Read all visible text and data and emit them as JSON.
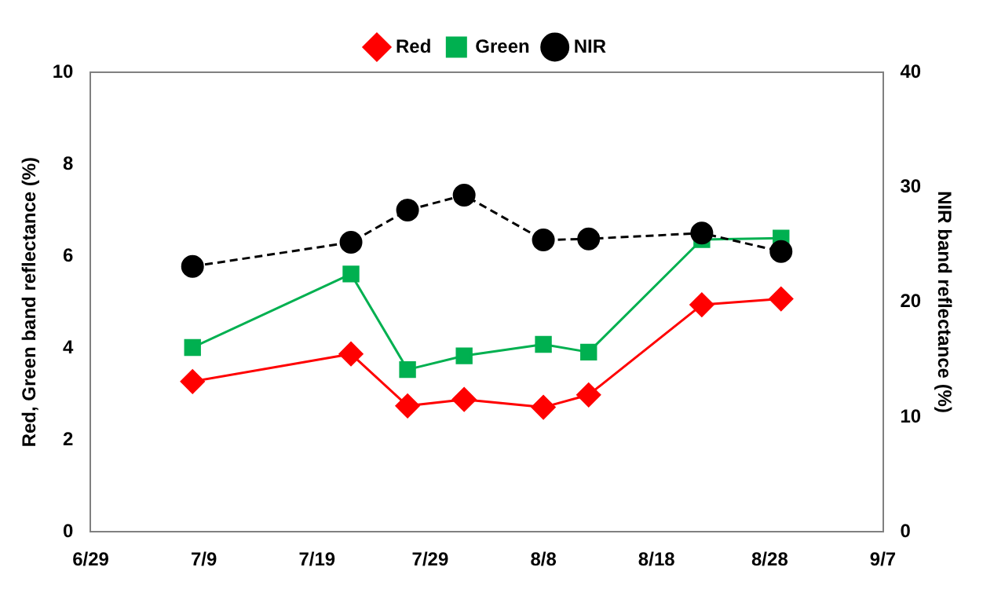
{
  "chart_data": {
    "type": "line",
    "ylabel": "Red, Green band reflectance (%)",
    "y2label": "NIR band reflectance (%)",
    "x": [
      "--07-08",
      "--07-22",
      "--07-27",
      "--08-01",
      "--08-08",
      "--08-12",
      "--08-22",
      "--08-29"
    ],
    "series": [
      {
        "name": "Red",
        "color": "#ff0000",
        "marker": "diamond",
        "line_style": "solid",
        "values": [
          3.27,
          3.87,
          2.74,
          2.88,
          2.71,
          2.98,
          4.94,
          5.07
        ]
      },
      {
        "name": "Green",
        "color": "#00b050",
        "marker": "square",
        "line_style": "solid",
        "values": [
          4.01,
          5.61,
          3.53,
          3.83,
          4.08,
          3.91,
          6.36,
          6.39
        ]
      },
      {
        "name": "NIR",
        "color": "#000000",
        "marker": "circle",
        "line_style": "dashed",
        "axis": "y2",
        "values": [
          23.1,
          25.2,
          28.0,
          29.3,
          25.4,
          25.5,
          26.0,
          24.4
        ]
      }
    ],
    "xlim": [
      "--06-29",
      "--09-07"
    ],
    "xticks": [
      {
        "value": "--06-29",
        "label": "6/29"
      },
      {
        "value": "--07-09",
        "label": "7/9"
      },
      {
        "value": "--07-19",
        "label": "7/19"
      },
      {
        "value": "--07-29",
        "label": "7/29"
      },
      {
        "value": "--08-08",
        "label": "8/8"
      },
      {
        "value": "--08-18",
        "label": "8/18"
      },
      {
        "value": "--08-28",
        "label": "8/28"
      },
      {
        "value": "--09-07",
        "label": "9/7"
      }
    ],
    "ylim": [
      0,
      10
    ],
    "yticks": [
      0,
      2,
      4,
      6,
      8,
      10
    ],
    "y2lim": [
      0,
      40
    ],
    "y2ticks": [
      0,
      10,
      20,
      30,
      40
    ],
    "grid": false,
    "legend": "top"
  }
}
